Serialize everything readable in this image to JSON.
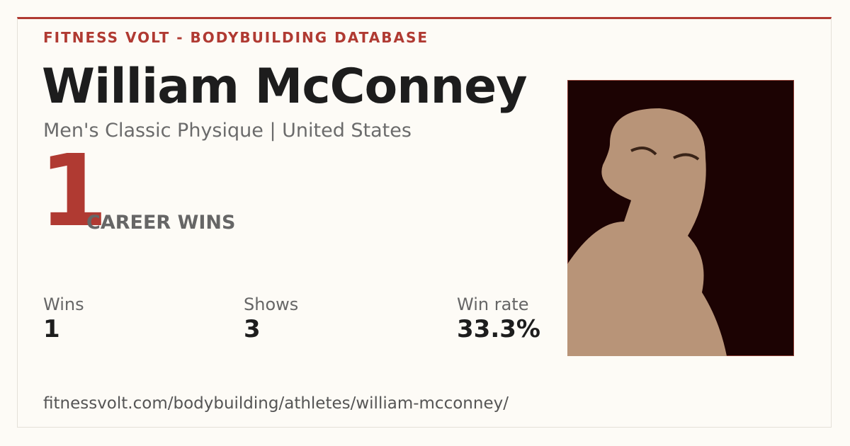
{
  "header": {
    "brand": "FITNESS VOLT - BODYBUILDING DATABASE"
  },
  "athlete": {
    "name": "William McConney",
    "subtitle": "Men's Classic Physique | United States"
  },
  "career": {
    "count": "1",
    "label": "CAREER WINS"
  },
  "stats": [
    {
      "label": "Wins",
      "value": "1"
    },
    {
      "label": "Shows",
      "value": "3"
    },
    {
      "label": "Win rate",
      "value": "33.3%"
    }
  ],
  "url": "fitnessvolt.com/bodybuilding/athletes/william-mcconney/"
}
